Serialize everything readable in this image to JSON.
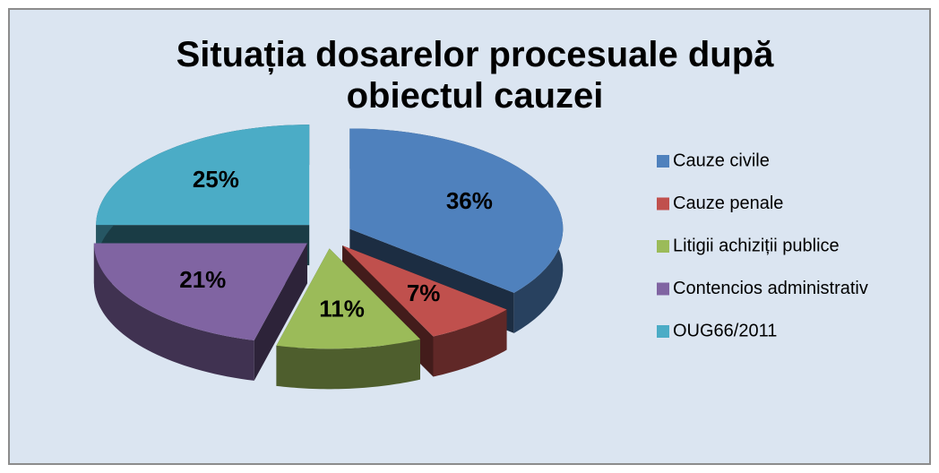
{
  "chart_data": {
    "type": "pie3d",
    "title": "Situația dosarelor procesuale după obiectul cauzei",
    "categories": [
      "Cauze civile",
      "Cauze penale",
      "Litigii achiziții publice",
      "Contencios administrativ",
      "OUG66/2011"
    ],
    "values": [
      36,
      7,
      11,
      21,
      25
    ],
    "value_labels": [
      "36%",
      "7%",
      "11%",
      "21%",
      "25%"
    ],
    "colors": [
      "#4f81bd",
      "#c0504d",
      "#9bbb59",
      "#8064a2",
      "#4bacc6"
    ],
    "legend": "right"
  }
}
